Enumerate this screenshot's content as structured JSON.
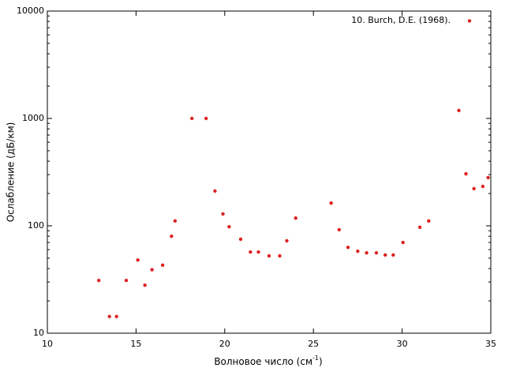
{
  "chart_data": {
    "type": "scatter",
    "annotation": "10. Burch, D.E. (1968).",
    "xlabel": {
      "text": "Волновое число (см",
      "sup": "-1",
      "end": ")"
    },
    "ylabel": "Ослабление (дБ/км)",
    "color": "#dd2222",
    "log_y": true,
    "xlim": [
      10,
      35
    ],
    "xticks": [
      10,
      15,
      20,
      25,
      30,
      35
    ],
    "ylim": [
      10,
      10000
    ],
    "yticks": [
      10,
      100,
      1000,
      10000
    ],
    "series": [
      {
        "name": "10. Burch, D.E. (1968).",
        "color": "#dd2222",
        "x": [
          12.9,
          13.5,
          13.9,
          14.45,
          15.1,
          15.5,
          15.9,
          16.5,
          17.0,
          17.2,
          18.15,
          18.95,
          19.45,
          19.9,
          20.25,
          20.9,
          21.45,
          21.9,
          22.5,
          23.1,
          23.5,
          24.0,
          26.0,
          26.45,
          26.95,
          27.5,
          28.0,
          28.55,
          29.05,
          29.5,
          30.05,
          31.0,
          31.5,
          33.2,
          33.6,
          33.8,
          34.05,
          34.55,
          34.85
        ],
        "values": [
          31,
          14.3,
          14.3,
          31,
          48,
          28,
          39,
          43,
          80,
          111,
          1000,
          1000,
          211,
          129,
          98,
          75,
          57,
          57,
          52.5,
          52.5,
          72.5,
          118,
          163,
          92,
          63,
          58,
          56,
          56,
          53.5,
          53.5,
          70,
          97,
          111,
          1185,
          305,
          8100,
          222,
          233,
          281
        ]
      }
    ]
  }
}
